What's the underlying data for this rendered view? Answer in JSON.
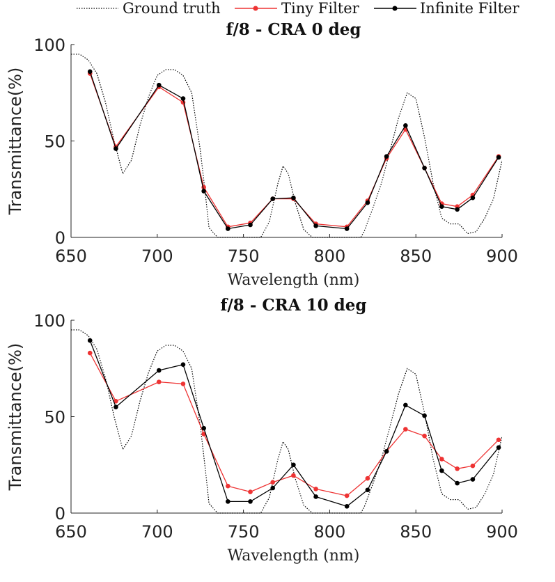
{
  "chart_data": {
    "legend": {
      "position": "top",
      "items": [
        {
          "label": "Ground truth",
          "color": "#000000",
          "style": "dotted",
          "marker": "none"
        },
        {
          "label": "Tiny Filter",
          "color": "#ee3333",
          "style": "solid",
          "marker": "dot"
        },
        {
          "label": "Infinite Filter",
          "color": "#000000",
          "style": "solid",
          "marker": "dot"
        }
      ]
    },
    "panels": [
      {
        "type": "line",
        "title": "f/8 - CRA 0 deg",
        "xlabel": "Wavelength (nm)",
        "ylabel": "Transmittance(%)",
        "xlim": [
          650,
          900
        ],
        "ylim": [
          0,
          100
        ],
        "xticks": [
          "650",
          "700",
          "750",
          "800",
          "850",
          "900"
        ],
        "yticks": [
          "0",
          "50",
          "100"
        ],
        "series": [
          {
            "name": "Ground truth",
            "x": [
              650,
              655,
              660,
              665,
              670,
              675,
              680,
              685,
              690,
              695,
              700,
              705,
              710,
              715,
              720,
              725,
              728,
              730,
              735,
              740,
              745,
              750,
              755,
              760,
              765,
              770,
              773,
              776,
              780,
              785,
              790,
              795,
              800,
              805,
              810,
              815,
              818,
              820,
              825,
              830,
              835,
              840,
              845,
              850,
              855,
              860,
              865,
              870,
              875,
              880,
              885,
              890,
              895,
              900
            ],
            "y": [
              95,
              95,
              92,
              85,
              70,
              50,
              33,
              40,
              58,
              73,
              84,
              87,
              87,
              84,
              75,
              45,
              22,
              5,
              0,
              0,
              0,
              0,
              0,
              0,
              8,
              28,
              37,
              33,
              18,
              4,
              0,
              0,
              0,
              0,
              0,
              0,
              0,
              3,
              15,
              28,
              45,
              62,
              75,
              72,
              52,
              28,
              10,
              7,
              7,
              2,
              3,
              10,
              20,
              40
            ]
          },
          {
            "name": "Tiny Filter",
            "x": [
              661,
              676,
              701,
              715,
              727,
              741,
              754,
              767,
              779,
              792,
              810,
              822,
              833,
              844,
              855,
              865,
              874,
              883,
              898
            ],
            "y": [
              85,
              47,
              78,
              70,
              26,
              5.5,
              7.5,
              20,
              20,
              7,
              5.5,
              19,
              41,
              56,
              36,
              17.5,
              16,
              22,
              42
            ]
          },
          {
            "name": "Infinite Filter",
            "x": [
              661,
              676,
              701,
              715,
              727,
              741,
              754,
              767,
              779,
              792,
              810,
              822,
              833,
              844,
              855,
              865,
              874,
              883,
              898
            ],
            "y": [
              86,
              46,
              79,
              72,
              24,
              4.5,
              6.5,
              20,
              20.5,
              6,
              4.5,
              18,
              42,
              58,
              36,
              16,
              14.5,
              20.5,
              41.5
            ]
          }
        ]
      },
      {
        "type": "line",
        "title": "f/8 - CRA 10 deg",
        "xlabel": "Wavelength (nm)",
        "ylabel": "Transmittance(%)",
        "xlim": [
          650,
          900
        ],
        "ylim": [
          0,
          100
        ],
        "xticks": [
          "650",
          "700",
          "750",
          "800",
          "850",
          "900"
        ],
        "yticks": [
          "0",
          "50",
          "100"
        ],
        "series": [
          {
            "name": "Ground truth",
            "x": [
              650,
              655,
              660,
              665,
              670,
              675,
              680,
              685,
              690,
              695,
              700,
              705,
              710,
              715,
              720,
              725,
              728,
              730,
              735,
              740,
              745,
              750,
              755,
              760,
              765,
              770,
              773,
              776,
              780,
              785,
              790,
              795,
              800,
              805,
              810,
              815,
              818,
              820,
              825,
              830,
              835,
              840,
              845,
              850,
              855,
              860,
              865,
              870,
              875,
              880,
              885,
              890,
              895,
              900
            ],
            "y": [
              95,
              95,
              92,
              85,
              70,
              50,
              33,
              40,
              58,
              73,
              84,
              87,
              87,
              84,
              75,
              45,
              22,
              5,
              0,
              0,
              0,
              0,
              0,
              0,
              8,
              28,
              37,
              33,
              18,
              4,
              0,
              0,
              0,
              0,
              0,
              0,
              0,
              3,
              15,
              28,
              45,
              62,
              75,
              72,
              52,
              28,
              10,
              7,
              7,
              2,
              3,
              10,
              20,
              40
            ]
          },
          {
            "name": "Tiny Filter",
            "x": [
              661,
              676,
              701,
              715,
              727,
              741,
              754,
              767,
              779,
              792,
              810,
              822,
              833,
              844,
              855,
              865,
              874,
              883,
              898
            ],
            "y": [
              83,
              58,
              68,
              67,
              41,
              14,
              11,
              16,
              19.5,
              12.5,
              9,
              18,
              32,
              43.5,
              40,
              28,
              23,
              24.5,
              38
            ]
          },
          {
            "name": "Infinite Filter",
            "x": [
              661,
              676,
              701,
              715,
              727,
              741,
              754,
              767,
              779,
              792,
              810,
              822,
              833,
              844,
              855,
              865,
              874,
              883,
              898
            ],
            "y": [
              89.5,
              55,
              74,
              77,
              44,
              6,
              6,
              13,
              25,
              8.5,
              3.5,
              12,
              32,
              56,
              50.5,
              22,
              15.5,
              17.5,
              34
            ]
          }
        ]
      }
    ]
  }
}
